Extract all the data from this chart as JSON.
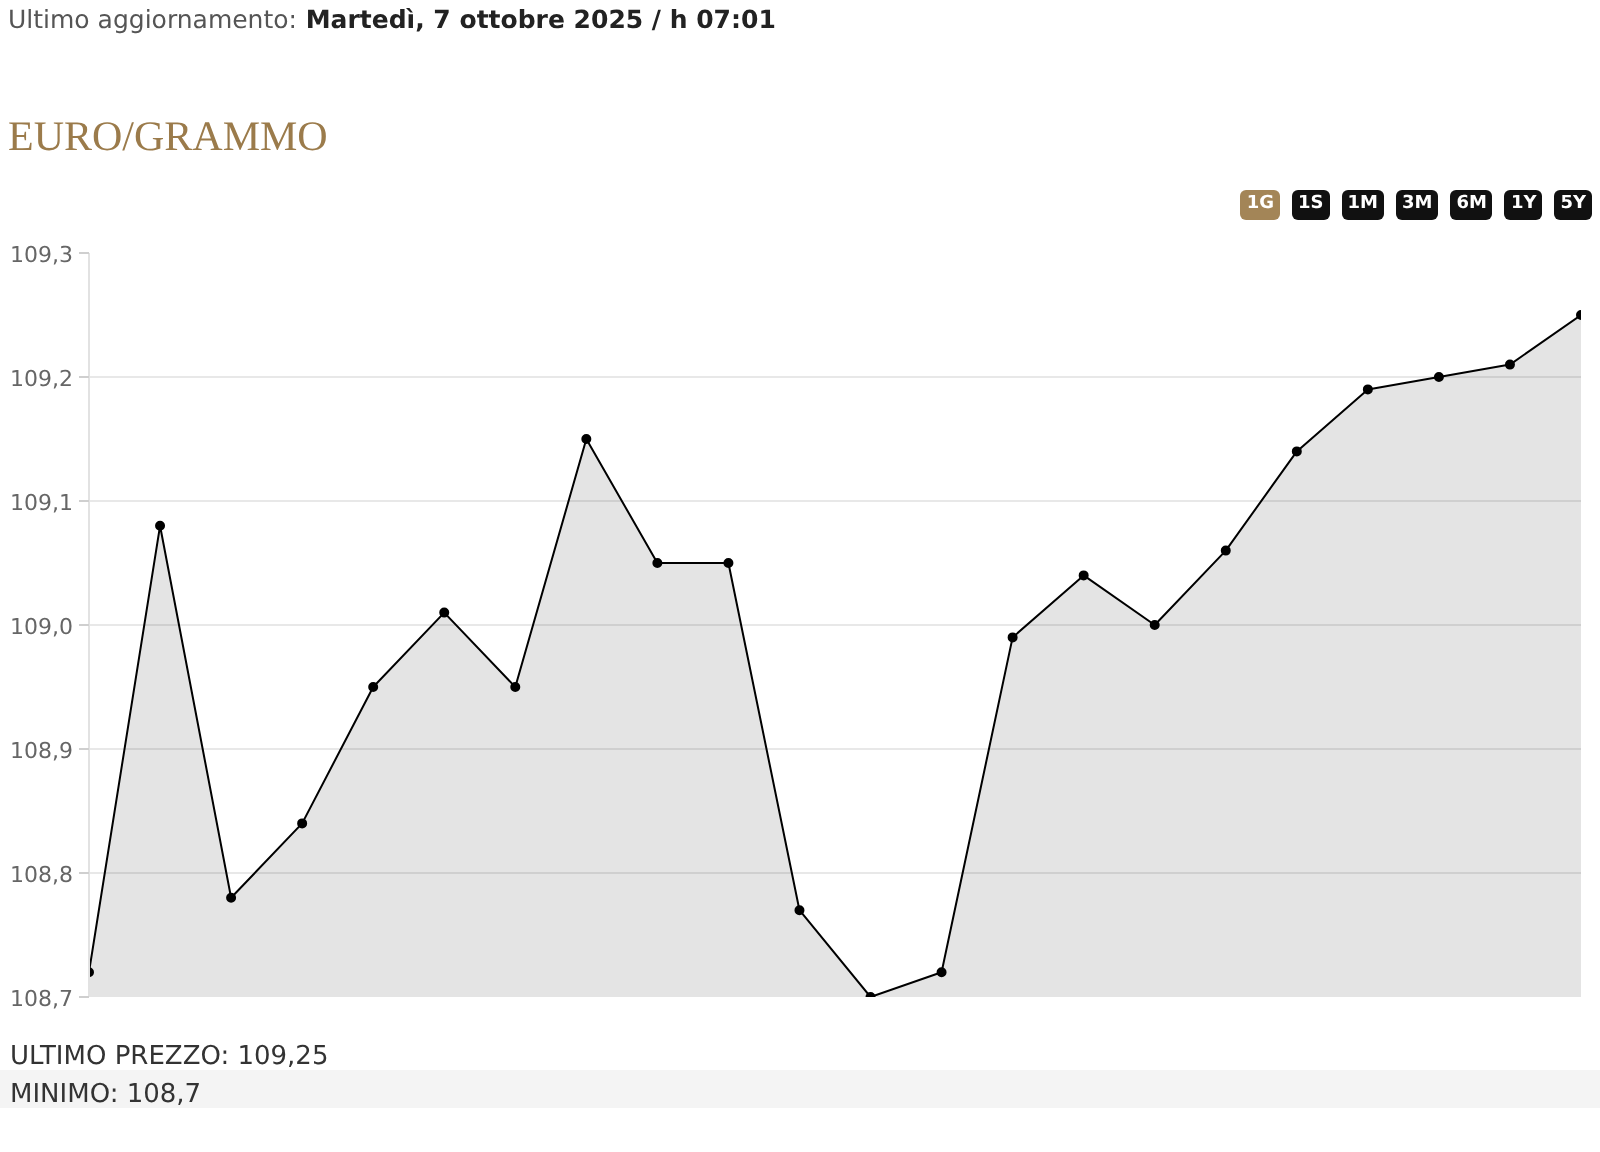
{
  "chart_data": {
    "type": "area",
    "title": "EURO/GRAMMO",
    "subtitle": "Ultimo aggiornamento: Martedì, 7 ottobre 2025 / h 07:01",
    "categories": [
      null,
      null,
      null,
      null,
      null,
      null,
      null,
      null,
      null,
      null,
      null,
      null,
      null,
      null,
      null,
      null,
      null,
      null,
      null,
      null,
      null,
      null
    ],
    "series": [
      {
        "color": "#000000",
        "values": [
          108.72,
          109.08,
          108.78,
          108.84,
          108.95,
          109.01,
          108.95,
          109.15,
          109.05,
          109.05,
          108.77,
          108.7,
          108.72,
          108.99,
          109.04,
          109.0,
          109.06,
          109.14,
          109.19,
          109.2,
          109.21,
          109.25
        ]
      }
    ],
    "ylim": [
      108.7,
      109.3
    ],
    "yticks": [
      {
        "value": 108.7,
        "label": "108,7"
      },
      {
        "value": 108.8,
        "label": "108,8"
      },
      {
        "value": 108.9,
        "label": "108,9"
      },
      {
        "value": 109.0,
        "label": "109,0"
      },
      {
        "value": 109.1,
        "label": "109,1"
      },
      {
        "value": 109.2,
        "label": "109,2"
      },
      {
        "value": 109.3,
        "label": "109,3"
      }
    ],
    "grid": "y",
    "marker": "circle",
    "tick_labels": "y",
    "annotations": [
      "1G",
      "1S",
      "1M",
      "3M",
      "6M",
      "1Y",
      "5Y",
      "ULTIMO PREZZO: 109,25",
      "MINIMO: 108,7"
    ]
  }
}
